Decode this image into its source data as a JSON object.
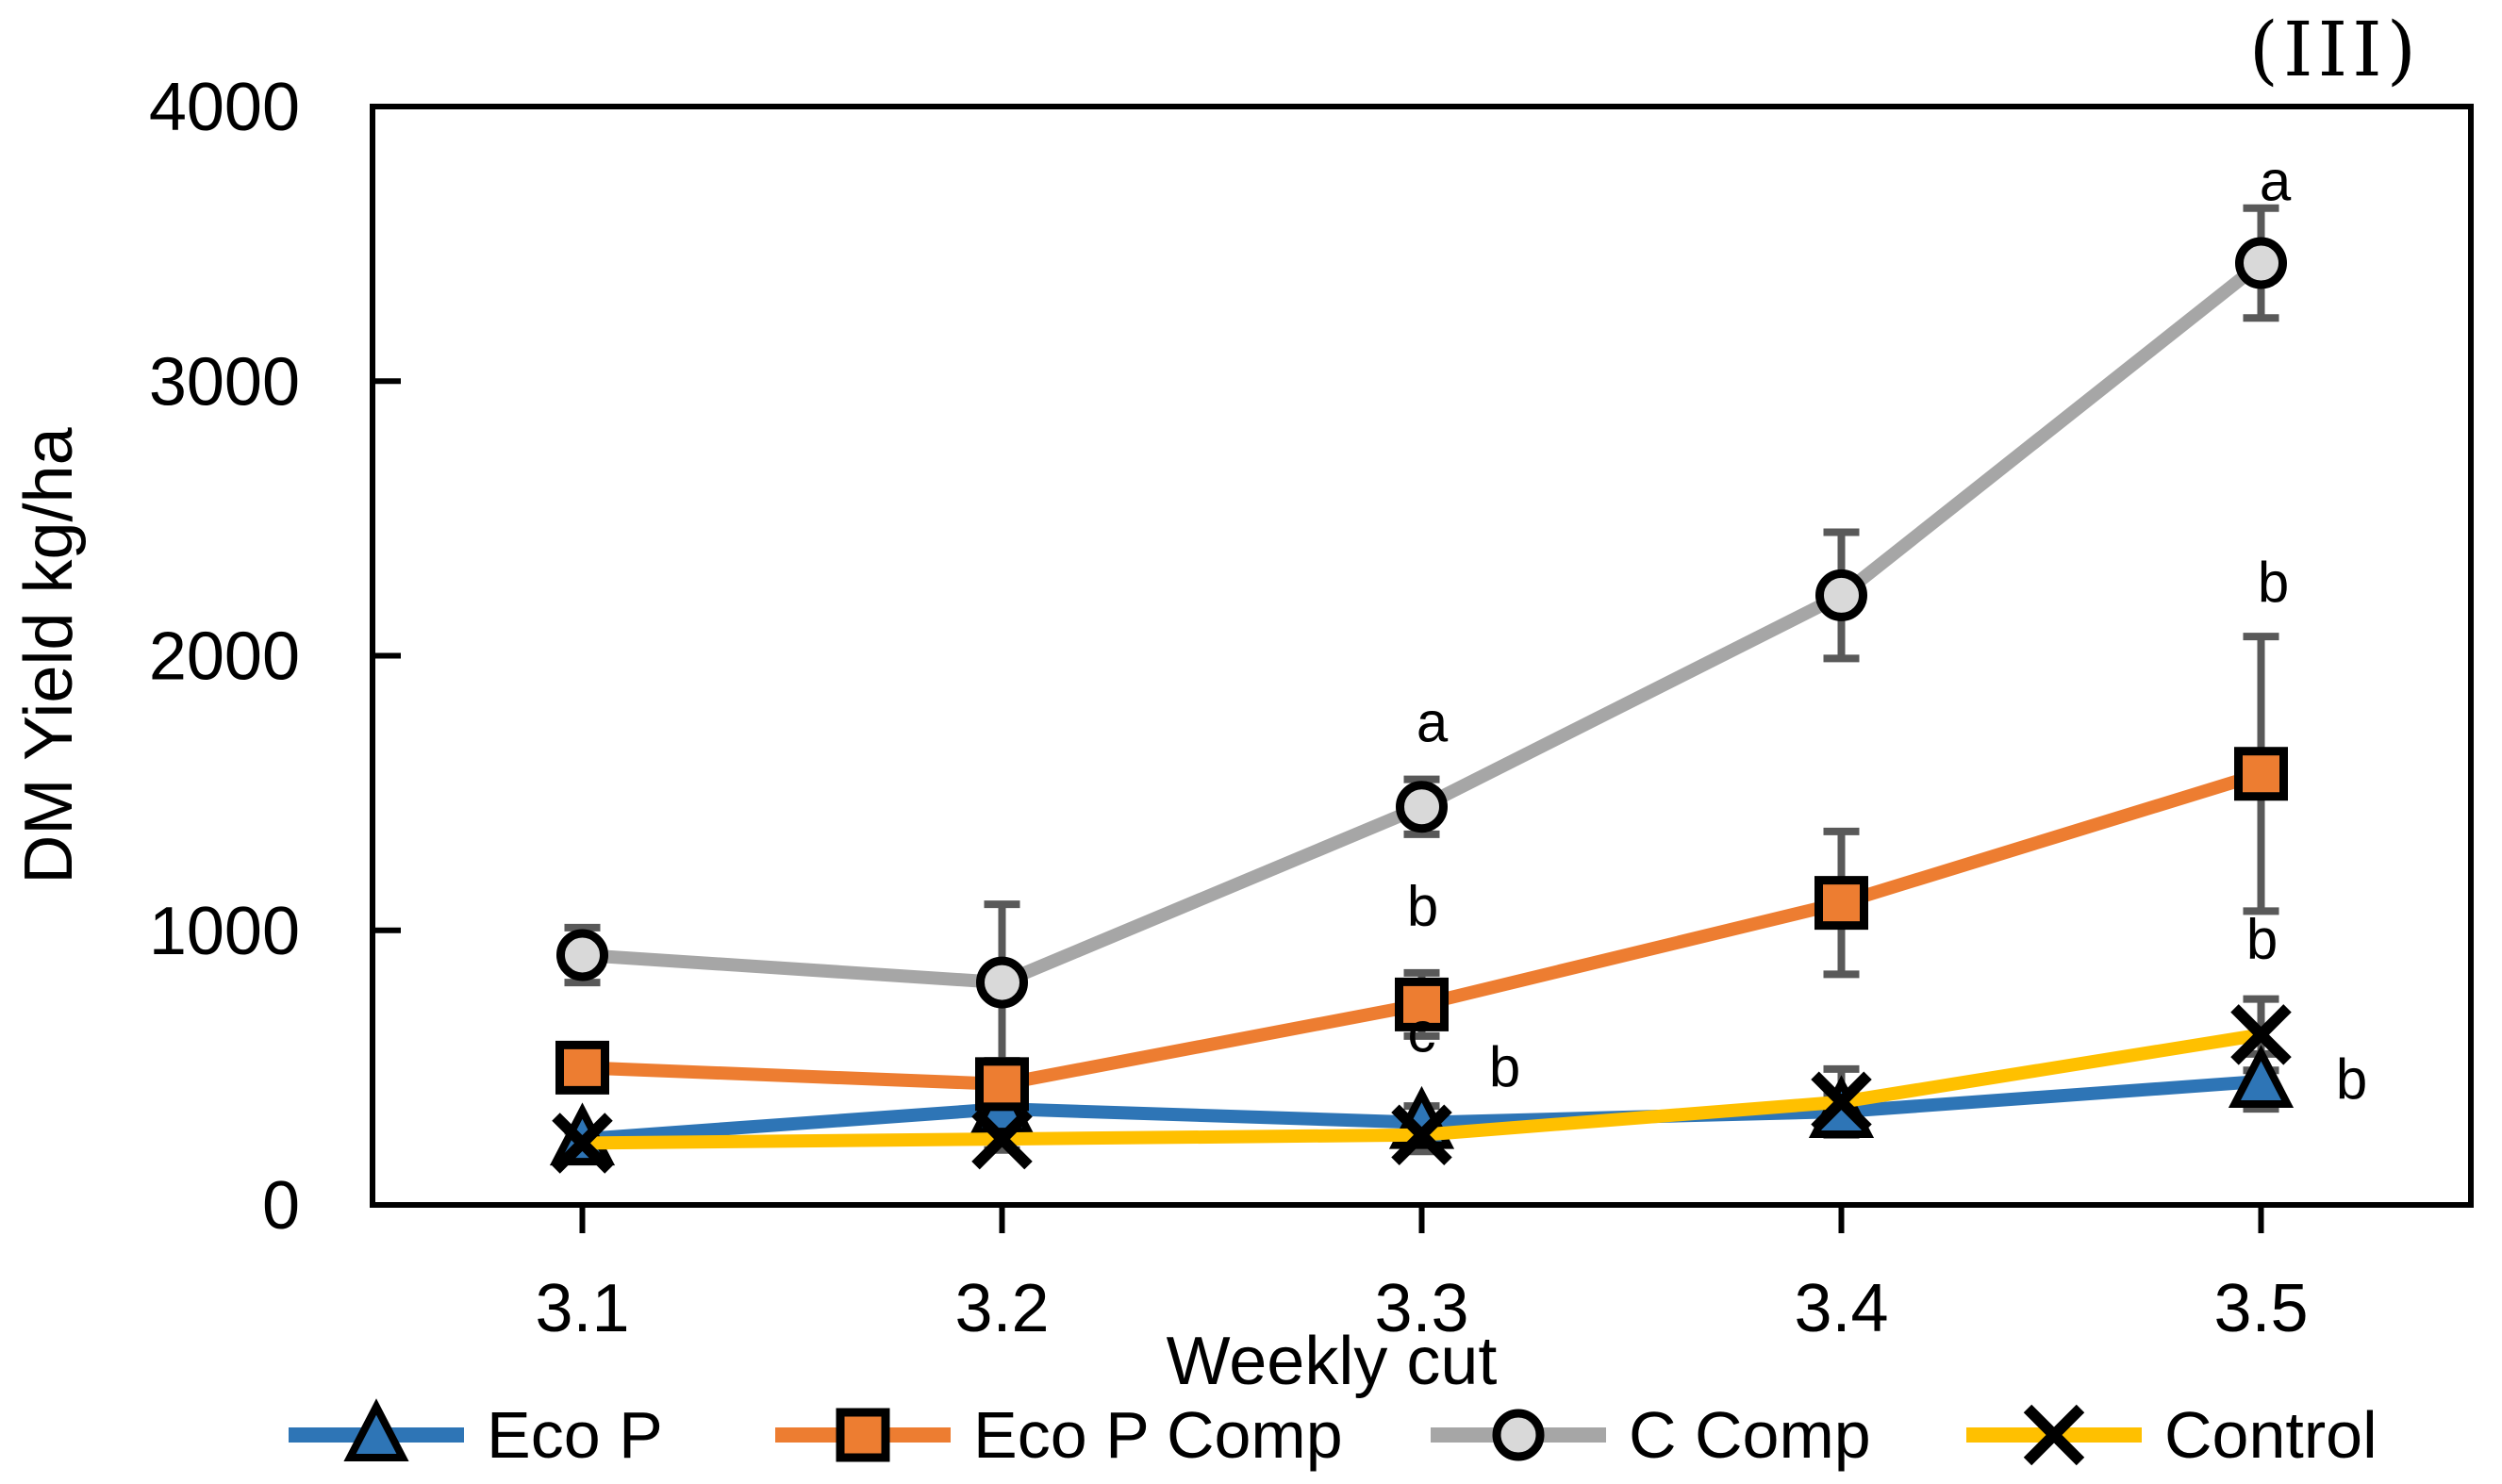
{
  "figure_tag": "(III)",
  "chart_data": {
    "type": "line",
    "title": "",
    "xlabel": "Weekly cut",
    "ylabel": "DM Yield kg/ha",
    "ylim": [
      0,
      4000
    ],
    "y_ticks": [
      0,
      1000,
      2000,
      3000,
      4000
    ],
    "categories": [
      "3.1",
      "3.2",
      "3.3",
      "3.4",
      "3.5"
    ],
    "grid": false,
    "legend_position": "bottom",
    "error_bar_color": "#595959",
    "series": [
      {
        "name": "Eco P",
        "color": "#2E75B6",
        "marker": "triangle",
        "marker_fill": "#2E75B6",
        "values": [
          240,
          350,
          300,
          340,
          450
        ],
        "errors": [
          30,
          40,
          60,
          60,
          100
        ]
      },
      {
        "name": "Eco P Comp",
        "color": "#ED7D31",
        "marker": "square",
        "marker_fill": "#ED7D31",
        "values": [
          500,
          440,
          730,
          1100,
          1570
        ],
        "errors": [
          45,
          60,
          115,
          260,
          500
        ]
      },
      {
        "name": "C Comp",
        "color": "#A6A6A6",
        "marker": "circle",
        "marker_fill": "#D9D9D9",
        "values": [
          910,
          810,
          1450,
          2220,
          3430
        ],
        "errors": [
          100,
          285,
          100,
          230,
          200
        ]
      },
      {
        "name": "Control",
        "color": "#FFC000",
        "marker": "x",
        "marker_fill": "#000000",
        "values": [
          225,
          240,
          255,
          375,
          620
        ],
        "errors": [
          45,
          40,
          60,
          120,
          130
        ]
      }
    ],
    "annotations": [
      {
        "text": "a",
        "category": "3.3",
        "value": 1760,
        "dx": 11
      },
      {
        "text": "b",
        "category": "3.3",
        "value": 1090,
        "dx": 1
      },
      {
        "text": "c",
        "category": "3.3",
        "value": 630,
        "dx": 0
      },
      {
        "text": "b",
        "category": "3.3",
        "value": 505,
        "dx": 88
      },
      {
        "text": "a",
        "category": "3.5",
        "value": 3730,
        "dx": 15
      },
      {
        "text": "b",
        "category": "3.5",
        "value": 2270,
        "dx": 13
      },
      {
        "text": "b",
        "category": "3.5",
        "value": 970,
        "dx": 1
      },
      {
        "text": "b",
        "category": "3.5",
        "value": 460,
        "dx": 96
      }
    ]
  }
}
